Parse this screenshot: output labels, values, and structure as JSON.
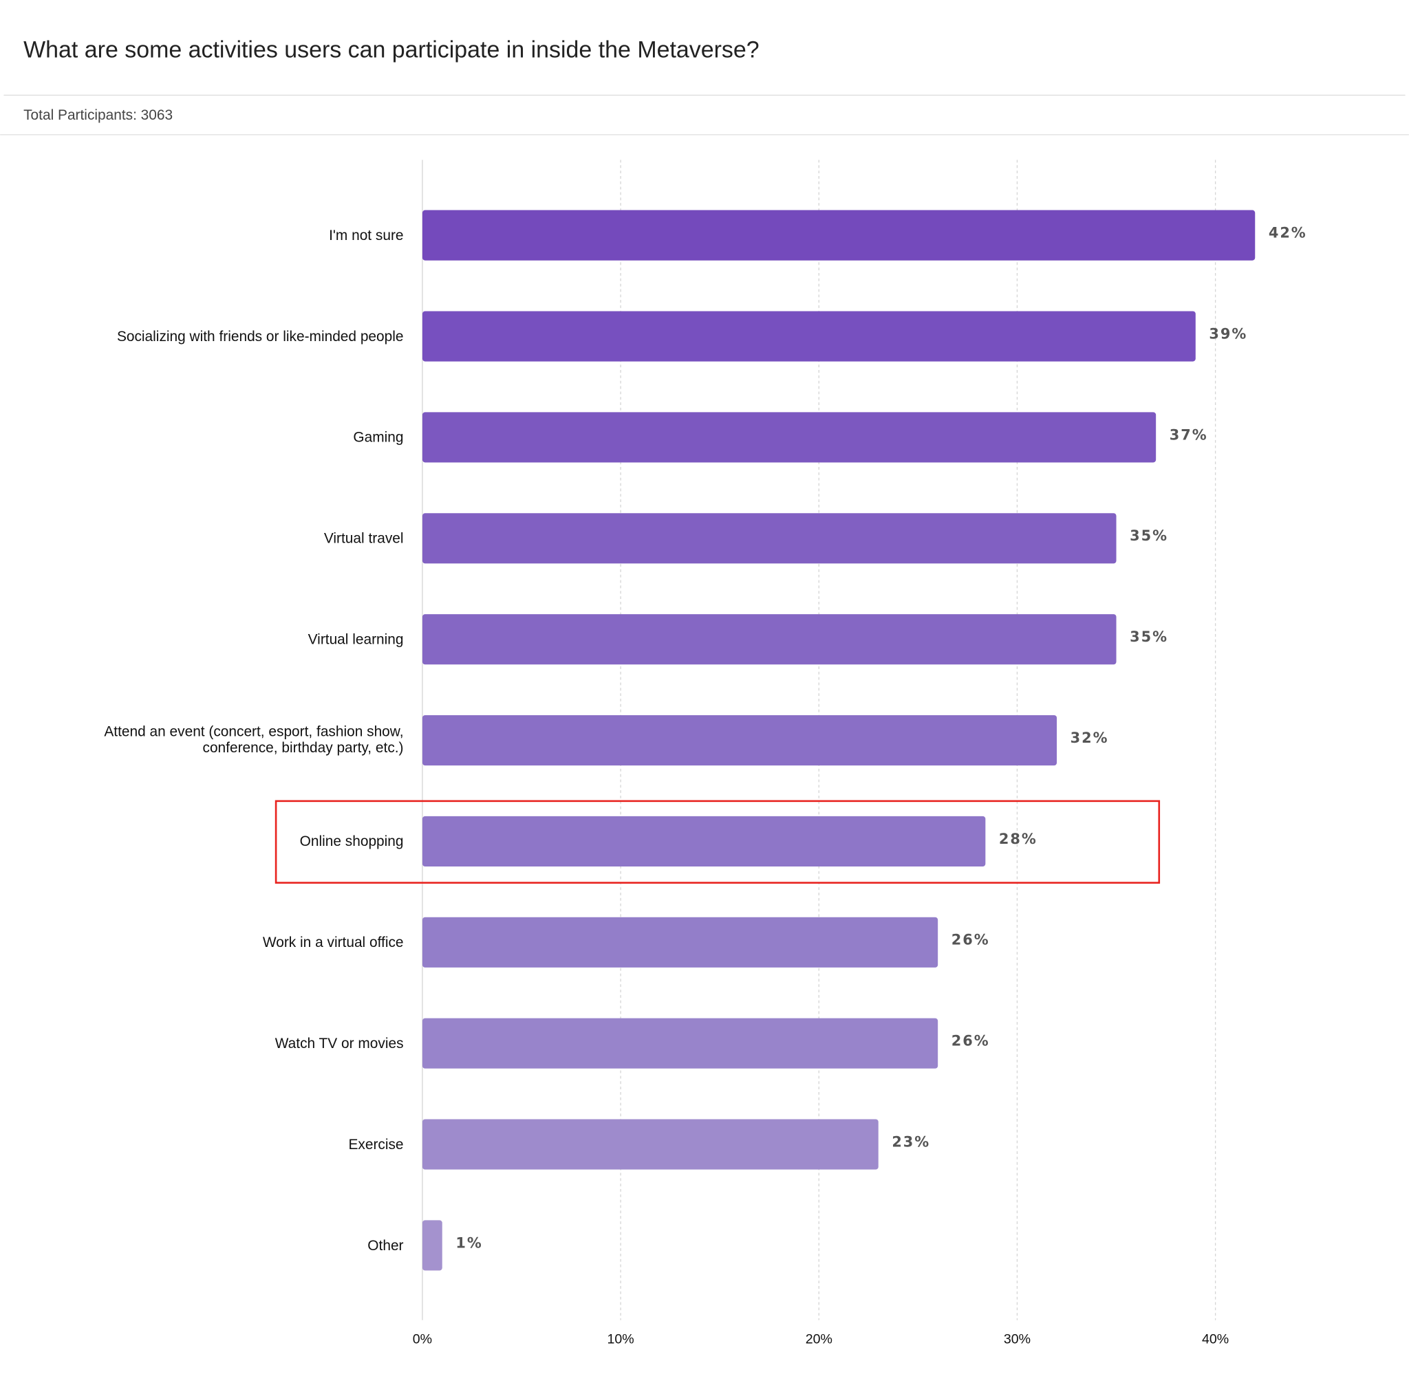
{
  "chart_data": {
    "type": "bar",
    "orientation": "horizontal",
    "title": "What are some activities users can participate in inside the Metaverse?",
    "subtitle": "Total Participants: 3063",
    "categories": [
      "I'm not sure",
      "Socializing with friends or like-minded people",
      "Gaming",
      "Virtual travel",
      "Virtual learning",
      [
        "Attend an event (concert, esport, fashion show,",
        "conference, birthday party, etc.)"
      ],
      "Online shopping",
      "Work in a virtual office",
      "Watch TV or movies",
      "Exercise",
      "Other"
    ],
    "values": [
      42,
      39,
      37,
      35,
      35,
      32,
      28.4,
      26,
      26,
      23,
      1
    ],
    "value_labels": [
      "42%",
      "39%",
      "37%",
      "35%",
      "35%",
      "32%",
      "28%",
      "26%",
      "26%",
      "23%",
      "1%"
    ],
    "colors": [
      "#744abc",
      "#7750bf",
      "#7c58c0",
      "#8160c2",
      "#8567c4",
      "#8a6fc6",
      "#8e76c8",
      "#937ec9",
      "#9884cb",
      "#9e8bcc",
      "#a492ce"
    ],
    "xlim": [
      0,
      45
    ],
    "xticks": [
      {
        "value": 0,
        "label": "0%"
      },
      {
        "value": 10,
        "label": "10%"
      },
      {
        "value": 20,
        "label": "20%"
      },
      {
        "value": 30,
        "label": "30%"
      },
      {
        "value": 40,
        "label": "40%"
      }
    ],
    "grid": true
  }
}
